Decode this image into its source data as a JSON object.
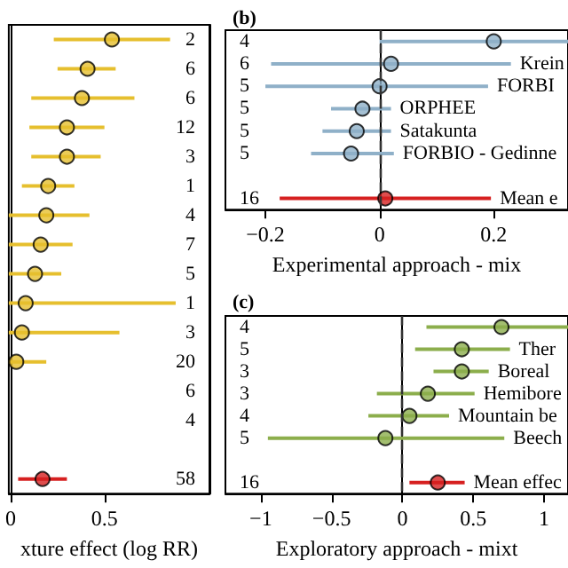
{
  "chart_data": [
    {
      "type": "scatter",
      "orientation": "horizontal",
      "marker": "circle",
      "xlabel": "xture effect (log RR)",
      "xlim": [
        -0.01,
        1.06
      ],
      "xticks": [
        0,
        0.5
      ],
      "categories": [
        null,
        null,
        null,
        null,
        null,
        null,
        null,
        null,
        null,
        null,
        null,
        null,
        null,
        null,
        null,
        null
      ],
      "y2_categories": [
        "2",
        "6",
        "6",
        "12",
        "3",
        "1",
        "4",
        "7",
        "5",
        "1",
        "3",
        "20",
        "6",
        "4",
        null,
        "58"
      ],
      "series": [
        {
          "color": "#e6bf2e",
          "values": [
            0.54,
            0.41,
            0.38,
            0.3,
            0.3,
            0.2,
            0.19,
            0.16,
            0.13,
            0.08,
            0.06,
            0.03,
            null,
            null,
            null,
            null
          ],
          "errors": [
            [
              0.23,
              0.85
            ],
            [
              0.25,
              0.56
            ],
            [
              0.11,
              0.66
            ],
            [
              0.1,
              0.5
            ],
            [
              0.11,
              0.48
            ],
            [
              0.06,
              0.34
            ],
            [
              -0.01,
              0.42
            ],
            [
              -0.01,
              0.33
            ],
            [
              -0.01,
              0.27
            ],
            [
              -0.01,
              0.88
            ],
            [
              -0.01,
              0.58
            ],
            [
              -0.01,
              0.19
            ],
            null,
            null,
            null,
            null
          ]
        },
        {
          "color": "#d62020",
          "values": [
            null,
            null,
            null,
            null,
            null,
            null,
            null,
            null,
            null,
            null,
            null,
            null,
            null,
            null,
            null,
            0.17
          ],
          "errors": [
            null,
            null,
            null,
            null,
            null,
            null,
            null,
            null,
            null,
            null,
            null,
            null,
            null,
            null,
            null,
            [
              0.04,
              0.3
            ]
          ]
        }
      ]
    },
    {
      "type": "scatter",
      "orientation": "horizontal",
      "marker": "circle",
      "title": "(b)",
      "xlabel": "Experimental approach - mix",
      "xlim": [
        -0.27,
        0.33
      ],
      "xticks": [
        {
          "value": -0.2,
          "label": "−0.2"
        },
        0,
        0.2
      ],
      "categories": [
        "4",
        "6",
        "5",
        "5",
        "5",
        "5",
        null,
        "16"
      ],
      "ref_lines": [
        {
          "axis": "x",
          "value": 0,
          "line_style": "dashed",
          "color": "#333333"
        }
      ],
      "series": [
        {
          "color": "#8fb0c8",
          "values": [
            0.2,
            null,
            null,
            null,
            null,
            null,
            null,
            null
          ],
          "errors": [
            [
              0.0,
              0.33
            ],
            null,
            null,
            null,
            null,
            null,
            null,
            null
          ]
        },
        {
          "name": "Krein",
          "color": "#8fb0c8",
          "values": [
            null,
            0.02,
            null,
            null,
            null,
            null,
            null,
            null
          ],
          "errors": [
            null,
            [
              -0.19,
              0.23
            ],
            null,
            null,
            null,
            null,
            null,
            null
          ]
        },
        {
          "name": "FORBI",
          "color": "#8fb0c8",
          "values": [
            null,
            null,
            0.0,
            null,
            null,
            null,
            null,
            null
          ],
          "errors": [
            null,
            null,
            [
              -0.2,
              0.19
            ],
            null,
            null,
            null,
            null,
            null
          ]
        },
        {
          "name": "ORPHEE",
          "color": "#8fb0c8",
          "values": [
            null,
            null,
            null,
            -0.03,
            null,
            null,
            null,
            null
          ],
          "errors": [
            null,
            null,
            null,
            [
              -0.085,
              0.02
            ],
            null,
            null,
            null,
            null
          ]
        },
        {
          "name": "Satakunta",
          "color": "#8fb0c8",
          "values": [
            null,
            null,
            null,
            null,
            -0.04,
            null,
            null,
            null
          ],
          "errors": [
            null,
            null,
            null,
            null,
            [
              -0.1,
              0.02
            ],
            null,
            null,
            null
          ]
        },
        {
          "name": "FORBIO - Gedinne",
          "color": "#8fb0c8",
          "values": [
            null,
            null,
            null,
            null,
            null,
            -0.05,
            null,
            null
          ],
          "errors": [
            null,
            null,
            null,
            null,
            null,
            [
              -0.12,
              0.025
            ],
            null,
            null
          ]
        },
        {
          "name": "Mean e",
          "color": "#d62020",
          "values": [
            null,
            null,
            null,
            null,
            null,
            null,
            null,
            0.01
          ],
          "errors": [
            null,
            null,
            null,
            null,
            null,
            null,
            null,
            [
              -0.175,
              0.195
            ]
          ]
        }
      ]
    },
    {
      "type": "scatter",
      "orientation": "horizontal",
      "marker": "circle",
      "title": "(c)",
      "xlabel": "Exploratory approach - mixt",
      "xlim": [
        -1.25,
        1.17
      ],
      "xticks": [
        {
          "value": -1,
          "label": "−1"
        },
        {
          "value": -0.5,
          "label": "−0.5"
        },
        0,
        0.5,
        1
      ],
      "categories": [
        "4",
        "5",
        "3",
        "3",
        "4",
        "5",
        null,
        "16"
      ],
      "ref_lines": [
        {
          "axis": "x",
          "value": 0,
          "line_style": "dashed",
          "color": "#333333"
        }
      ],
      "series": [
        {
          "color": "#8cae4c",
          "values": [
            0.7,
            null,
            null,
            null,
            null,
            null,
            null,
            null
          ],
          "errors": [
            [
              0.17,
              1.17
            ],
            null,
            null,
            null,
            null,
            null,
            null,
            null
          ]
        },
        {
          "name": "Ther",
          "color": "#8cae4c",
          "values": [
            null,
            0.42,
            null,
            null,
            null,
            null,
            null,
            null
          ],
          "errors": [
            null,
            [
              0.09,
              0.76
            ],
            null,
            null,
            null,
            null,
            null,
            null
          ]
        },
        {
          "name": "Boreal",
          "color": "#8cae4c",
          "values": [
            null,
            null,
            0.42,
            null,
            null,
            null,
            null,
            null
          ],
          "errors": [
            null,
            null,
            [
              0.22,
              0.61
            ],
            null,
            null,
            null,
            null,
            null
          ]
        },
        {
          "name": "Hemibore",
          "color": "#8cae4c",
          "values": [
            null,
            null,
            null,
            0.18,
            null,
            null,
            null,
            null
          ],
          "errors": [
            null,
            null,
            null,
            [
              -0.18,
              0.51
            ],
            null,
            null,
            null,
            null
          ]
        },
        {
          "name": "Mountain be",
          "color": "#8cae4c",
          "values": [
            null,
            null,
            null,
            null,
            0.05,
            null,
            null,
            null
          ],
          "errors": [
            null,
            null,
            null,
            null,
            [
              -0.24,
              0.33
            ],
            null,
            null,
            null
          ]
        },
        {
          "name": "Beech",
          "color": "#8cae4c",
          "values": [
            null,
            null,
            null,
            null,
            null,
            -0.12,
            null,
            null
          ],
          "errors": [
            null,
            null,
            null,
            null,
            null,
            [
              -0.95,
              0.72
            ],
            null,
            null
          ]
        },
        {
          "name": "Mean effec",
          "color": "#d62020",
          "values": [
            null,
            null,
            null,
            null,
            null,
            null,
            null,
            0.25
          ],
          "errors": [
            null,
            null,
            null,
            null,
            null,
            null,
            null,
            [
              0.05,
              0.44
            ]
          ]
        }
      ]
    }
  ]
}
